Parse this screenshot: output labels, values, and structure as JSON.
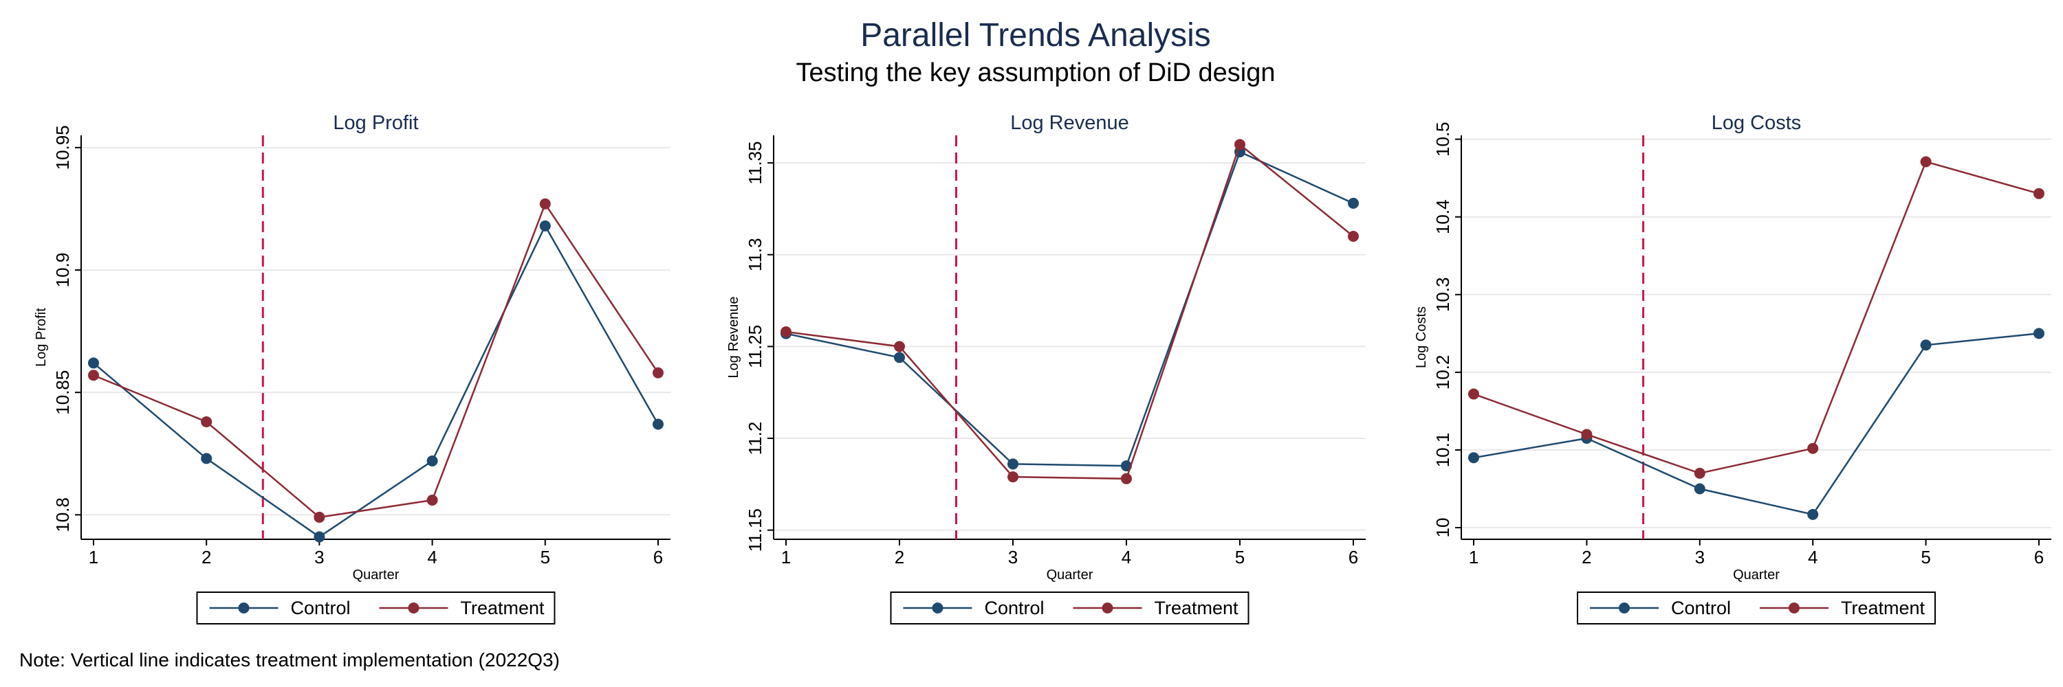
{
  "title": "Parallel Trends Analysis",
  "subtitle": "Testing the key assumption of DiD design",
  "note": "Note: Vertical line indicates treatment implementation (2022Q3)",
  "colors": {
    "control": "#1f4a6e",
    "treatment": "#8c2b35",
    "treatment_line": "#c8174a",
    "grid": "#e8e8e8",
    "title": "#1a2c4f"
  },
  "chart_data": [
    {
      "type": "line",
      "title": "Log Profit",
      "xlabel": "Quarter",
      "ylabel": "Log Profit",
      "x": [
        1,
        2,
        3,
        4,
        5,
        6
      ],
      "ylim": [
        10.79,
        10.955
      ],
      "yticks": [
        10.8,
        10.85,
        10.9,
        10.95
      ],
      "ytick_labels": [
        "10.8",
        "10.85",
        "10.9",
        "10.95"
      ],
      "xticks": [
        "1",
        "2",
        "3",
        "4",
        "5",
        "6"
      ],
      "treatment_x": 2.5,
      "grid": true,
      "legend": "bottom",
      "series": [
        {
          "name": "Control",
          "values": [
            10.862,
            10.823,
            10.791,
            10.822,
            10.918,
            10.837
          ]
        },
        {
          "name": "Treatment",
          "values": [
            10.857,
            10.838,
            10.799,
            10.806,
            10.927,
            10.858
          ]
        }
      ]
    },
    {
      "type": "line",
      "title": "Log Revenue",
      "xlabel": "Quarter",
      "ylabel": "Log Revenue",
      "x": [
        1,
        2,
        3,
        4,
        5,
        6
      ],
      "ylim": [
        11.145,
        11.365
      ],
      "yticks": [
        11.15,
        11.2,
        11.25,
        11.3,
        11.35
      ],
      "ytick_labels": [
        "11.15",
        "11.2",
        "11.25",
        "11.3",
        "11.35"
      ],
      "xticks": [
        "1",
        "2",
        "3",
        "4",
        "5",
        "6"
      ],
      "treatment_x": 2.5,
      "grid": true,
      "legend": "bottom",
      "series": [
        {
          "name": "Control",
          "values": [
            11.257,
            11.244,
            11.186,
            11.185,
            11.356,
            11.328
          ]
        },
        {
          "name": "Treatment",
          "values": [
            11.258,
            11.25,
            11.179,
            11.178,
            11.36,
            11.31
          ]
        }
      ]
    },
    {
      "type": "line",
      "title": "Log Costs",
      "xlabel": "Quarter",
      "ylabel": "Log Costs",
      "x": [
        1,
        2,
        3,
        4,
        5,
        6
      ],
      "ylim": [
        9.985,
        10.505
      ],
      "yticks": [
        10.0,
        10.1,
        10.2,
        10.3,
        10.4,
        10.5
      ],
      "ytick_labels": [
        "10",
        "10.1",
        "10.2",
        "10.3",
        "10.4",
        "10.5"
      ],
      "xticks": [
        "1",
        "2",
        "3",
        "4",
        "5",
        "6"
      ],
      "treatment_x": 2.5,
      "grid": true,
      "legend": "bottom",
      "series": [
        {
          "name": "Control",
          "values": [
            10.09,
            10.115,
            10.05,
            10.017,
            10.235,
            10.25
          ]
        },
        {
          "name": "Treatment",
          "values": [
            10.172,
            10.12,
            10.07,
            10.102,
            10.471,
            10.43
          ]
        }
      ]
    }
  ]
}
